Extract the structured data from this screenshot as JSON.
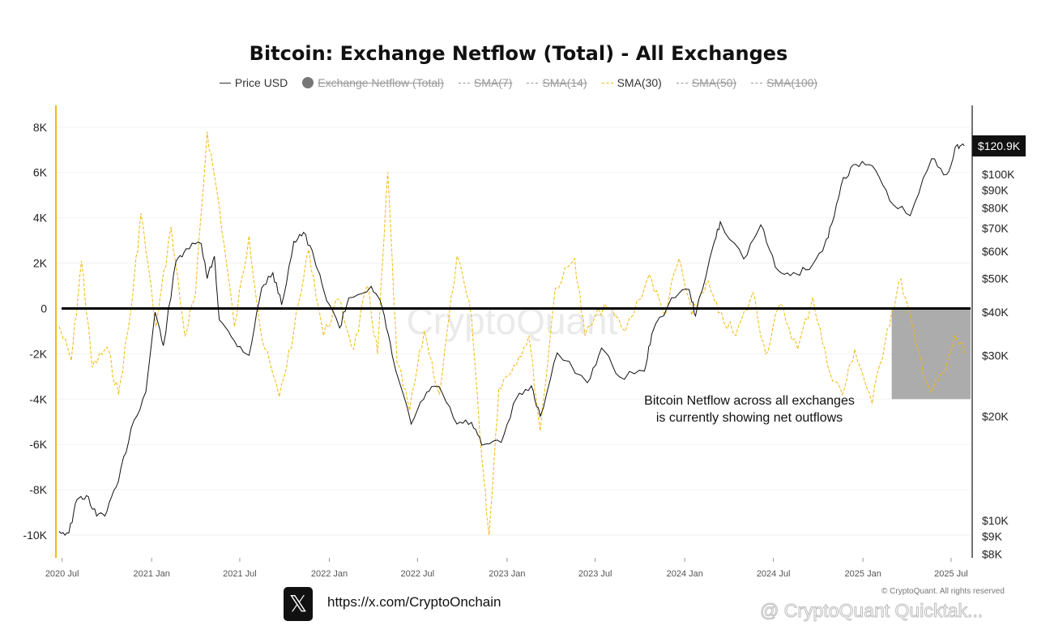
{
  "title": "Bitcoin: Exchange Netflow (Total) - All Exchanges",
  "legend": [
    {
      "label": "Price USD",
      "active": true,
      "style": "solid-dark"
    },
    {
      "label": "Exchange Netflow (Total)",
      "active": false,
      "style": "dot"
    },
    {
      "label": "SMA(7)",
      "active": false,
      "style": "dash-gray"
    },
    {
      "label": "SMA(14)",
      "active": false,
      "style": "dash-gray"
    },
    {
      "label": "SMA(30)",
      "active": true,
      "style": "dash-gold"
    },
    {
      "label": "SMA(50)",
      "active": false,
      "style": "dash-gray"
    },
    {
      "label": "SMA(100)",
      "active": false,
      "style": "dash-gray"
    }
  ],
  "footer": {
    "x_glyph": "𝕏",
    "url": "https://x.com/CryptoOnchain",
    "copyright": "© CryptoQuant. All rights reserved",
    "watermark_center": "CryptoQuant",
    "watermark_bottom": "@ CryptoQuant Quicktak..."
  },
  "colors": {
    "price": "#111111",
    "sma30": "#f0b90b",
    "zero_line": "#000000",
    "highlight": "#9e9e9e",
    "price_label_bg": "#111111"
  },
  "chart_data": {
    "type": "line",
    "left_axis": {
      "ticks": [
        8000,
        6000,
        4000,
        2000,
        0,
        -2000,
        -4000,
        -6000,
        -8000,
        -10000
      ],
      "tick_labels": [
        "8K",
        "6K",
        "4K",
        "2K",
        "0",
        "-2K",
        "-4K",
        "-6K",
        "-8K",
        "-10K"
      ],
      "range": [
        -11000,
        8600
      ]
    },
    "right_axis": {
      "scale": "log",
      "ticks": [
        100000,
        90000,
        80000,
        70000,
        60000,
        50000,
        40000,
        30000,
        20000,
        10000,
        9000,
        8000
      ],
      "tick_labels": [
        "$100K",
        "$90K",
        "$80K",
        "$70K",
        "$60K",
        "$50K",
        "$40K",
        "$30K",
        "$20K",
        "$10K",
        "$9K",
        "$8K"
      ],
      "range": [
        7800,
        150000
      ]
    },
    "x_axis": {
      "ticks": [
        "2020-07-01",
        "2021-01-01",
        "2021-07-01",
        "2022-01-01",
        "2022-07-01",
        "2023-01-01",
        "2023-07-01",
        "2024-01-01",
        "2024-07-01",
        "2025-01-01",
        "2025-07-01"
      ],
      "tick_labels": [
        "2020 Jul",
        "2021 Jan",
        "2021 Jul",
        "2022 Jan",
        "2022 Jul",
        "2023 Jan",
        "2023 Jul",
        "2024 Jan",
        "2024 Jul",
        "2025 Jan",
        "2025 Jul"
      ],
      "range": [
        "2020-06-20",
        "2025-08-10"
      ]
    },
    "current_price_label": "$120.9K",
    "annotation": "Bitcoin Netflow across all exchanges\nis currently showing net outflows",
    "highlight_box": {
      "x": [
        "2025-03-01",
        "2025-08-10"
      ],
      "y": [
        -4000,
        0
      ]
    },
    "series": [
      {
        "name": "Price USD",
        "axis": "right",
        "style": "solid",
        "points": [
          [
            "2020-06-25",
            9300
          ],
          [
            "2020-07-15",
            9200
          ],
          [
            "2020-08-01",
            11500
          ],
          [
            "2020-08-20",
            11800
          ],
          [
            "2020-09-10",
            10300
          ],
          [
            "2020-10-01",
            10600
          ],
          [
            "2020-10-25",
            13000
          ],
          [
            "2020-11-20",
            18500
          ],
          [
            "2020-12-20",
            23500
          ],
          [
            "2021-01-08",
            40000
          ],
          [
            "2021-01-25",
            32000
          ],
          [
            "2021-02-20",
            56000
          ],
          [
            "2021-03-13",
            61000
          ],
          [
            "2021-04-13",
            63000
          ],
          [
            "2021-04-25",
            50000
          ],
          [
            "2021-05-10",
            58000
          ],
          [
            "2021-05-20",
            38000
          ],
          [
            "2021-06-20",
            33000
          ],
          [
            "2021-07-20",
            30000
          ],
          [
            "2021-08-15",
            47000
          ],
          [
            "2021-09-07",
            52000
          ],
          [
            "2021-09-25",
            42000
          ],
          [
            "2021-10-20",
            64000
          ],
          [
            "2021-11-09",
            68000
          ],
          [
            "2021-12-01",
            57000
          ],
          [
            "2021-12-20",
            46500
          ],
          [
            "2022-01-22",
            36000
          ],
          [
            "2022-02-10",
            44000
          ],
          [
            "2022-03-28",
            47500
          ],
          [
            "2022-04-20",
            41000
          ],
          [
            "2022-05-10",
            30000
          ],
          [
            "2022-06-18",
            19000
          ],
          [
            "2022-07-20",
            23500
          ],
          [
            "2022-08-14",
            24400
          ],
          [
            "2022-09-20",
            19000
          ],
          [
            "2022-10-20",
            19200
          ],
          [
            "2022-11-10",
            16500
          ],
          [
            "2022-12-20",
            16800
          ],
          [
            "2023-01-20",
            22500
          ],
          [
            "2023-02-20",
            24500
          ],
          [
            "2023-03-10",
            20000
          ],
          [
            "2023-04-14",
            30500
          ],
          [
            "2023-06-15",
            25000
          ],
          [
            "2023-07-14",
            31500
          ],
          [
            "2023-08-20",
            26000
          ],
          [
            "2023-10-10",
            27000
          ],
          [
            "2023-10-25",
            34500
          ],
          [
            "2023-12-05",
            44000
          ],
          [
            "2024-01-10",
            46500
          ],
          [
            "2024-01-23",
            39000
          ],
          [
            "2024-02-28",
            62000
          ],
          [
            "2024-03-14",
            73000
          ],
          [
            "2024-05-01",
            57000
          ],
          [
            "2024-06-05",
            71500
          ],
          [
            "2024-07-05",
            54000
          ],
          [
            "2024-08-05",
            51000
          ],
          [
            "2024-09-06",
            53000
          ],
          [
            "2024-10-10",
            60000
          ],
          [
            "2024-10-29",
            72000
          ],
          [
            "2024-11-22",
            98000
          ],
          [
            "2024-12-17",
            107000
          ],
          [
            "2025-01-20",
            106000
          ],
          [
            "2025-02-25",
            84000
          ],
          [
            "2025-04-08",
            76000
          ],
          [
            "2025-05-22",
            111000
          ],
          [
            "2025-06-22",
            100000
          ],
          [
            "2025-07-14",
            122000
          ],
          [
            "2025-07-28",
            120900
          ]
        ]
      },
      {
        "name": "SMA(30)",
        "axis": "left",
        "style": "dashed",
        "points": [
          [
            "2020-06-25",
            -800
          ],
          [
            "2020-07-20",
            -2300
          ],
          [
            "2020-08-10",
            2100
          ],
          [
            "2020-09-01",
            -2600
          ],
          [
            "2020-10-01",
            -1700
          ],
          [
            "2020-10-25",
            -3800
          ],
          [
            "2020-11-20",
            0
          ],
          [
            "2020-12-10",
            4200
          ],
          [
            "2021-01-10",
            -800
          ],
          [
            "2021-02-10",
            3600
          ],
          [
            "2021-03-10",
            -1200
          ],
          [
            "2021-04-01",
            600
          ],
          [
            "2021-04-25",
            7800
          ],
          [
            "2021-05-20",
            4500
          ],
          [
            "2021-06-20",
            -800
          ],
          [
            "2021-07-20",
            3200
          ],
          [
            "2021-08-15",
            -1300
          ],
          [
            "2021-09-20",
            -3900
          ],
          [
            "2021-10-20",
            -1000
          ],
          [
            "2021-11-20",
            2600
          ],
          [
            "2021-12-20",
            -1200
          ],
          [
            "2022-01-20",
            400
          ],
          [
            "2022-02-20",
            -1800
          ],
          [
            "2022-03-20",
            1000
          ],
          [
            "2022-04-10",
            -2000
          ],
          [
            "2022-05-01",
            6000
          ],
          [
            "2022-05-20",
            -2400
          ],
          [
            "2022-06-15",
            -4500
          ],
          [
            "2022-07-15",
            -1000
          ],
          [
            "2022-08-15",
            -3800
          ],
          [
            "2022-09-20",
            2300
          ],
          [
            "2022-10-20",
            -400
          ],
          [
            "2022-11-10",
            -6500
          ],
          [
            "2022-11-25",
            -10000
          ],
          [
            "2022-12-15",
            -3500
          ],
          [
            "2023-01-15",
            -2500
          ],
          [
            "2023-02-15",
            -1200
          ],
          [
            "2023-03-10",
            -5400
          ],
          [
            "2023-04-10",
            900
          ],
          [
            "2023-05-20",
            2200
          ],
          [
            "2023-06-10",
            -1200
          ],
          [
            "2023-07-20",
            200
          ],
          [
            "2023-09-01",
            -1000
          ],
          [
            "2023-10-20",
            1500
          ],
          [
            "2023-11-20",
            -300
          ],
          [
            "2023-12-20",
            2200
          ],
          [
            "2024-01-15",
            -300
          ],
          [
            "2024-02-15",
            1200
          ],
          [
            "2024-03-10",
            -200
          ],
          [
            "2024-04-15",
            -1200
          ],
          [
            "2024-05-20",
            700
          ],
          [
            "2024-06-15",
            -2000
          ],
          [
            "2024-07-15",
            200
          ],
          [
            "2024-08-20",
            -1800
          ],
          [
            "2024-09-20",
            500
          ],
          [
            "2024-10-20",
            -2500
          ],
          [
            "2024-11-20",
            -3800
          ],
          [
            "2024-12-15",
            -1800
          ],
          [
            "2025-01-20",
            -4200
          ],
          [
            "2025-02-20",
            -900
          ],
          [
            "2025-03-20",
            1300
          ],
          [
            "2025-04-20",
            -1600
          ],
          [
            "2025-05-20",
            -3700
          ],
          [
            "2025-06-20",
            -2700
          ],
          [
            "2025-07-10",
            -1200
          ],
          [
            "2025-07-28",
            -2000
          ]
        ]
      }
    ]
  }
}
